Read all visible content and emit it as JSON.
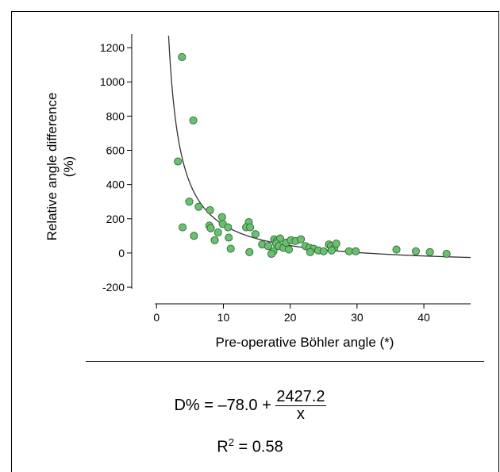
{
  "chart_data": {
    "type": "scatter",
    "xlabel": "Pre-operative Böhler angle (*)",
    "ylabel_line1": "Relative angle difference",
    "ylabel_line2": "(%)",
    "xlim": [
      -3,
      47
    ],
    "ylim": [
      -260,
      1270
    ],
    "xticks": [
      0,
      10,
      20,
      30,
      40
    ],
    "yticks": [
      1200,
      1000,
      800,
      600,
      400,
      200,
      0,
      -200
    ],
    "grid": false,
    "marker_color": "#6cbf72",
    "marker_edge": "#2e6b33",
    "curve_color": "#333333",
    "points": [
      [
        3.8,
        1145
      ],
      [
        5.5,
        775
      ],
      [
        3.2,
        535
      ],
      [
        4.9,
        300
      ],
      [
        6.3,
        270
      ],
      [
        3.9,
        150
      ],
      [
        5.6,
        100
      ],
      [
        8.0,
        250
      ],
      [
        9.8,
        210
      ],
      [
        9.9,
        170
      ],
      [
        7.9,
        160
      ],
      [
        8.1,
        145
      ],
      [
        10.7,
        150
      ],
      [
        9.2,
        120
      ],
      [
        10.8,
        90
      ],
      [
        8.7,
        75
      ],
      [
        11.1,
        25
      ],
      [
        13.8,
        180
      ],
      [
        13.4,
        150
      ],
      [
        14.0,
        150
      ],
      [
        14.8,
        110
      ],
      [
        15.8,
        50
      ],
      [
        16.7,
        40
      ],
      [
        13.9,
        5
      ],
      [
        17.6,
        80
      ],
      [
        18.0,
        70
      ],
      [
        18.5,
        85
      ],
      [
        17.9,
        55
      ],
      [
        18.3,
        40
      ],
      [
        19.0,
        30
      ],
      [
        17.5,
        10
      ],
      [
        17.2,
        -5
      ],
      [
        19.4,
        60
      ],
      [
        20.1,
        75
      ],
      [
        20.8,
        70
      ],
      [
        21.6,
        80
      ],
      [
        19.8,
        20
      ],
      [
        22.3,
        40
      ],
      [
        22.9,
        30
      ],
      [
        23.5,
        25
      ],
      [
        24.2,
        15
      ],
      [
        23.0,
        5
      ],
      [
        25.0,
        10
      ],
      [
        25.8,
        50
      ],
      [
        26.1,
        40
      ],
      [
        26.6,
        30
      ],
      [
        26.9,
        55
      ],
      [
        26.2,
        15
      ],
      [
        28.8,
        10
      ],
      [
        29.8,
        10
      ],
      [
        35.9,
        20
      ],
      [
        38.8,
        10
      ],
      [
        40.9,
        5
      ],
      [
        43.4,
        -5
      ]
    ],
    "fit": {
      "a": -78.0,
      "b": 2427.2,
      "x_start": 1.8,
      "x_end": 47
    }
  },
  "equation": {
    "lhs": "D% = –78.0 + ",
    "numerator": "2427.2",
    "denominator": "x",
    "r2_label": "R",
    "r2_exp": "2",
    "r2_value": " = 0.58"
  }
}
